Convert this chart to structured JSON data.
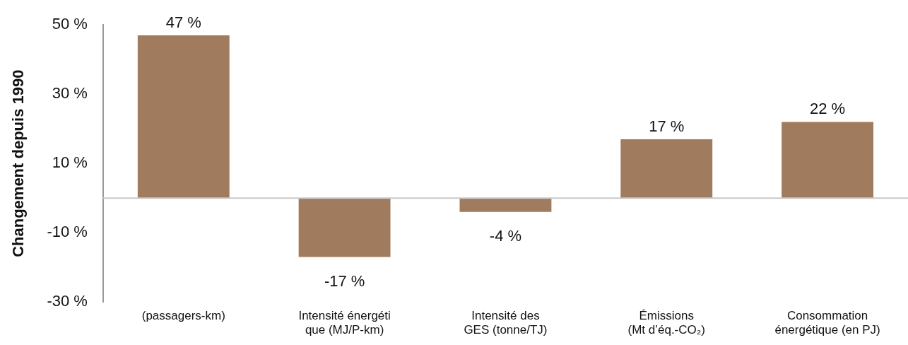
{
  "chart_data": {
    "type": "bar",
    "ylabel": "Changement depuis 1990",
    "categories": [
      "(passagers-km)",
      "Intensité énergéti\nque (MJ/P-km)",
      "Intensité des\nGES (tonne/TJ)",
      "Émissions\n(Mt d’éq.-CO₂)",
      "Consommation\nénergétique (en PJ)"
    ],
    "values": [
      47,
      -17,
      -4,
      17,
      22
    ],
    "value_labels": [
      "47 %",
      "-17 %",
      "-4 %",
      "17 %",
      "22 %"
    ],
    "color": "#a07b5e",
    "ylim": [
      -30,
      50
    ],
    "yticks": [
      {
        "value": 50,
        "label": "50 %"
      },
      {
        "value": 30,
        "label": "30 %"
      },
      {
        "value": 10,
        "label": "10 %"
      },
      {
        "value": -10,
        "label": "-10 %"
      },
      {
        "value": -30,
        "label": "-30 %"
      }
    ],
    "grid": false,
    "legend": false
  }
}
